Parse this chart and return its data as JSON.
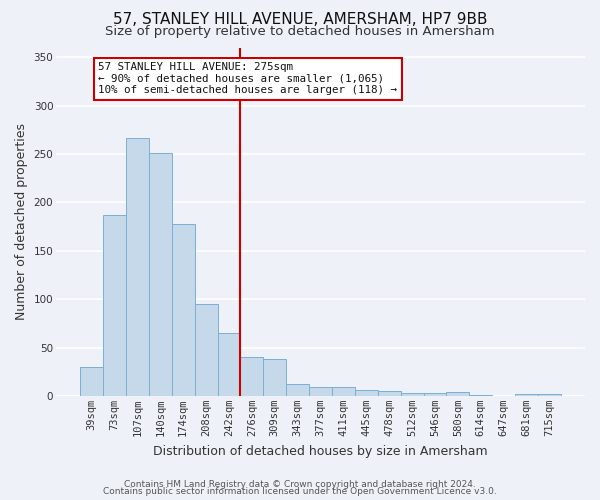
{
  "title": "57, STANLEY HILL AVENUE, AMERSHAM, HP7 9BB",
  "subtitle": "Size of property relative to detached houses in Amersham",
  "xlabel": "Distribution of detached houses by size in Amersham",
  "ylabel": "Number of detached properties",
  "bin_labels": [
    "39sqm",
    "73sqm",
    "107sqm",
    "140sqm",
    "174sqm",
    "208sqm",
    "242sqm",
    "276sqm",
    "309sqm",
    "343sqm",
    "377sqm",
    "411sqm",
    "445sqm",
    "478sqm",
    "512sqm",
    "546sqm",
    "580sqm",
    "614sqm",
    "647sqm",
    "681sqm",
    "715sqm"
  ],
  "bar_heights": [
    30,
    187,
    267,
    251,
    178,
    95,
    65,
    40,
    38,
    12,
    9,
    9,
    6,
    5,
    3,
    3,
    4,
    1,
    0,
    2,
    2
  ],
  "bar_color": "#c6d9ea",
  "bar_edge_color": "#7aafd6",
  "vline_color": "#cc0000",
  "annotation_title": "57 STANLEY HILL AVENUE: 275sqm",
  "annotation_line1": "← 90% of detached houses are smaller (1,065)",
  "annotation_line2": "10% of semi-detached houses are larger (118) →",
  "annotation_box_color": "#ffffff",
  "annotation_box_edge": "#cc0000",
  "ylim": [
    0,
    360
  ],
  "yticks": [
    0,
    50,
    100,
    150,
    200,
    250,
    300,
    350
  ],
  "footer1": "Contains HM Land Registry data © Crown copyright and database right 2024.",
  "footer2": "Contains public sector information licensed under the Open Government Licence v3.0.",
  "background_color": "#eef2f8",
  "grid_color": "#ffffff",
  "title_fontsize": 11,
  "subtitle_fontsize": 9.5,
  "axis_label_fontsize": 9,
  "tick_fontsize": 7.5,
  "footer_fontsize": 6.5
}
